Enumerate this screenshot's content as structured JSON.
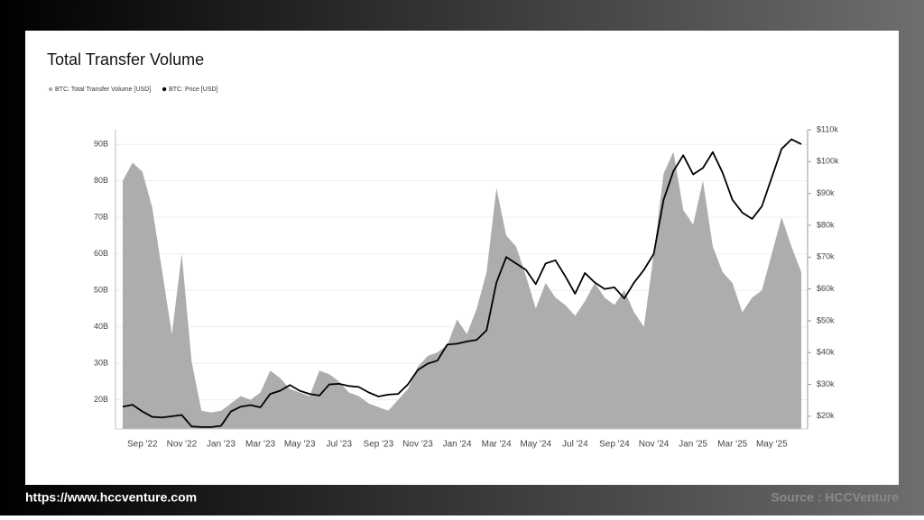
{
  "chart_data": {
    "type": "combo",
    "title": "Total Transfer Volume",
    "categories": [
      null,
      null,
      "Sep '22",
      null,
      null,
      null,
      "Nov '22",
      null,
      null,
      null,
      "Jan '23",
      null,
      null,
      null,
      "Mar '23",
      null,
      null,
      null,
      "May '23",
      null,
      null,
      null,
      "Jul '23",
      null,
      null,
      null,
      "Sep '23",
      null,
      null,
      null,
      "Nov '23",
      null,
      null,
      null,
      "Jan '24",
      null,
      null,
      null,
      "Mar '24",
      null,
      null,
      null,
      "May '24",
      null,
      null,
      null,
      "Jul '24",
      null,
      null,
      null,
      "Sep '24",
      null,
      null,
      null,
      "Nov '24",
      null,
      null,
      null,
      "Jan '25",
      null,
      null,
      null,
      "Mar '25",
      null,
      null,
      null,
      "May '25",
      null,
      null,
      null
    ],
    "series": [
      {
        "name": "BTC: Total Transfer Volume [USD]",
        "type": "area",
        "color": "#adadad",
        "axis": "y",
        "values": [
          80,
          85,
          82.5,
          72.7,
          55.4,
          38,
          60,
          30.6,
          17,
          16.5,
          17,
          19,
          21,
          20,
          22,
          28,
          26,
          23,
          22,
          21,
          28,
          27,
          25,
          22,
          21,
          19,
          18,
          17,
          20,
          23,
          29,
          32,
          33,
          35,
          42,
          38,
          45,
          55,
          78,
          65,
          62,
          54,
          45,
          52,
          48,
          46,
          43,
          47,
          52,
          48,
          46,
          50,
          44,
          40,
          60,
          82,
          88,
          72,
          68,
          80,
          62,
          55,
          52,
          44,
          48,
          50,
          60,
          70,
          62,
          55
        ]
      },
      {
        "name": "BTC: Price [USD]",
        "type": "line",
        "color": "#000000",
        "axis": "y2",
        "values": [
          23,
          23.6,
          21.5,
          19.8,
          19.6,
          20,
          20.4,
          16.8,
          16.6,
          16.6,
          17,
          21.5,
          23,
          23.5,
          22.8,
          27,
          28,
          29.8,
          28,
          27,
          26.5,
          30,
          30.2,
          29.5,
          29.2,
          27.5,
          26.2,
          26.8,
          27,
          30,
          34.5,
          36.5,
          37.5,
          42.5,
          42.8,
          43.5,
          44,
          47,
          62,
          70,
          68,
          66,
          61.5,
          68,
          69,
          64,
          58.5,
          65,
          62,
          60,
          60.5,
          57,
          62,
          66,
          71,
          88,
          97,
          102,
          96,
          98,
          103,
          96.5,
          88,
          84,
          82,
          86,
          95,
          104,
          107,
          105.5
        ]
      }
    ],
    "ylim": [
      12,
      94
    ],
    "yticks": [
      {
        "value": 20,
        "label": "20B"
      },
      {
        "value": 30,
        "label": "30B"
      },
      {
        "value": 40,
        "label": "40B"
      },
      {
        "value": 50,
        "label": "50B"
      },
      {
        "value": 60,
        "label": "60B"
      },
      {
        "value": 70,
        "label": "70B"
      },
      {
        "value": 80,
        "label": "80B"
      },
      {
        "value": 90,
        "label": "90B"
      }
    ],
    "y2lim": [
      16,
      110
    ],
    "y2ticks": [
      {
        "value": 20,
        "label": "$20k"
      },
      {
        "value": 30,
        "label": "$30k"
      },
      {
        "value": 40,
        "label": "$40k"
      },
      {
        "value": 50,
        "label": "$50k"
      },
      {
        "value": 60,
        "label": "$60k"
      },
      {
        "value": 70,
        "label": "$70k"
      },
      {
        "value": 80,
        "label": "$80k"
      },
      {
        "value": 90,
        "label": "$90k"
      },
      {
        "value": 100,
        "label": "$100k"
      },
      {
        "value": 110,
        "label": "$110k"
      }
    ],
    "grid": true,
    "legend": "top-left"
  },
  "footer": {
    "url": "https://www.hccventure.com",
    "source": "Source : HCCVenture"
  }
}
